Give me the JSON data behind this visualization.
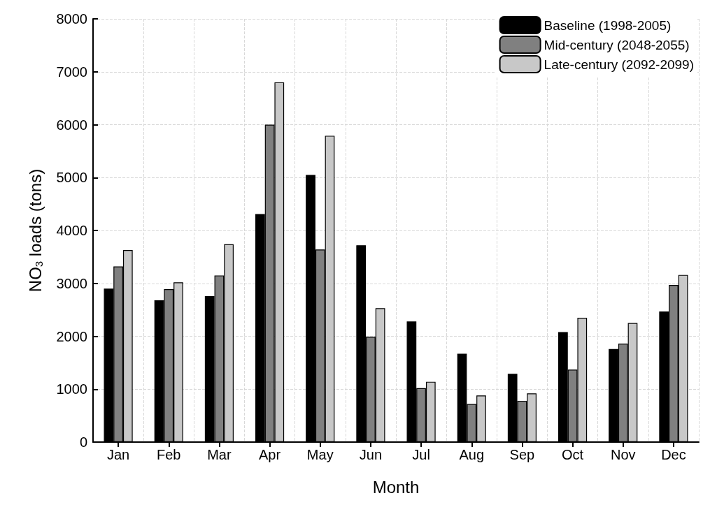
{
  "chart_data": {
    "type": "bar",
    "xlabel": "Month",
    "ylabel": "NO$_{3}$ loads (tons)",
    "categories": [
      "Jan",
      "Feb",
      "Mar",
      "Apr",
      "May",
      "Jun",
      "Jul",
      "Aug",
      "Sep",
      "Oct",
      "Nov",
      "Dec"
    ],
    "series": [
      {
        "name": "Baseline (1998-2005)",
        "color": "#000000",
        "values": [
          2900,
          2680,
          2760,
          4310,
          5050,
          3720,
          2280,
          1670,
          1290,
          2080,
          1760,
          2470
        ]
      },
      {
        "name": "Mid-century (2048-2055)",
        "color": "#808080",
        "values": [
          3320,
          2890,
          3150,
          6000,
          3640,
          1990,
          1020,
          720,
          780,
          1370,
          1860,
          2970
        ]
      },
      {
        "name": "Late-century (2092-2099)",
        "color": "#c8c8c8",
        "values": [
          3630,
          3020,
          3740,
          6800,
          5790,
          2530,
          1140,
          880,
          920,
          2350,
          2250,
          3160
        ]
      }
    ],
    "ylim": [
      0,
      8000
    ],
    "yticks": [
      0,
      1000,
      2000,
      3000,
      4000,
      5000,
      6000,
      7000,
      8000
    ],
    "grid": true,
    "legend": "top right"
  }
}
